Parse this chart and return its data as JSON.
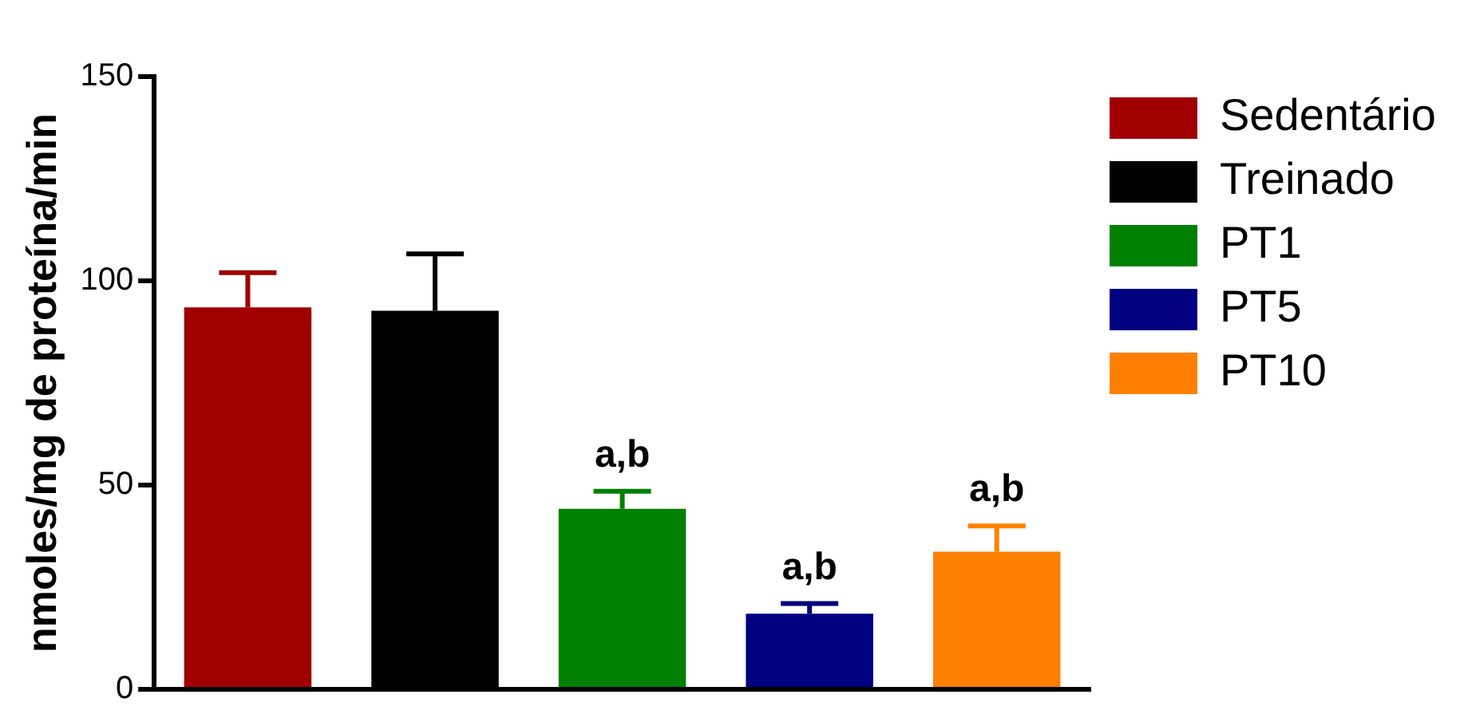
{
  "chart_data": {
    "type": "bar",
    "ylabel": "nmoles/mg de proteína/min",
    "categories": [
      null,
      null,
      null,
      null,
      null
    ],
    "series": [
      {
        "name": "Sedentário",
        "color": "#a00000",
        "values": [
          93.5,
          null,
          null,
          null,
          null
        ],
        "errors": [
          8.5,
          null,
          null,
          null,
          null
        ]
      },
      {
        "name": "Treinado",
        "color": "#000000",
        "values": [
          null,
          92.7,
          null,
          null,
          null
        ],
        "errors": [
          null,
          13.9,
          null,
          null,
          null
        ]
      },
      {
        "name": "PT1",
        "color": "#008000",
        "values": [
          null,
          null,
          44.2,
          null,
          null
        ],
        "errors": [
          null,
          null,
          4.3,
          null,
          null
        ],
        "value_labels": [
          null,
          null,
          "a,b",
          null,
          null
        ]
      },
      {
        "name": "PT5",
        "color": "#000080",
        "values": [
          null,
          null,
          null,
          18.5,
          null
        ],
        "errors": [
          null,
          null,
          null,
          2.5,
          null
        ],
        "value_labels": [
          null,
          null,
          null,
          "a,b",
          null
        ]
      },
      {
        "name": "PT10",
        "color": "#ff8000",
        "values": [
          null,
          null,
          null,
          null,
          33.7
        ],
        "errors": [
          null,
          null,
          null,
          null,
          6.3
        ],
        "value_labels": [
          null,
          null,
          null,
          null,
          "a,b"
        ]
      }
    ],
    "ylim": [
      0,
      150
    ],
    "yticks": [
      0,
      50,
      100,
      150
    ],
    "grid": false,
    "legend": "top right",
    "tick_labels": "y"
  }
}
